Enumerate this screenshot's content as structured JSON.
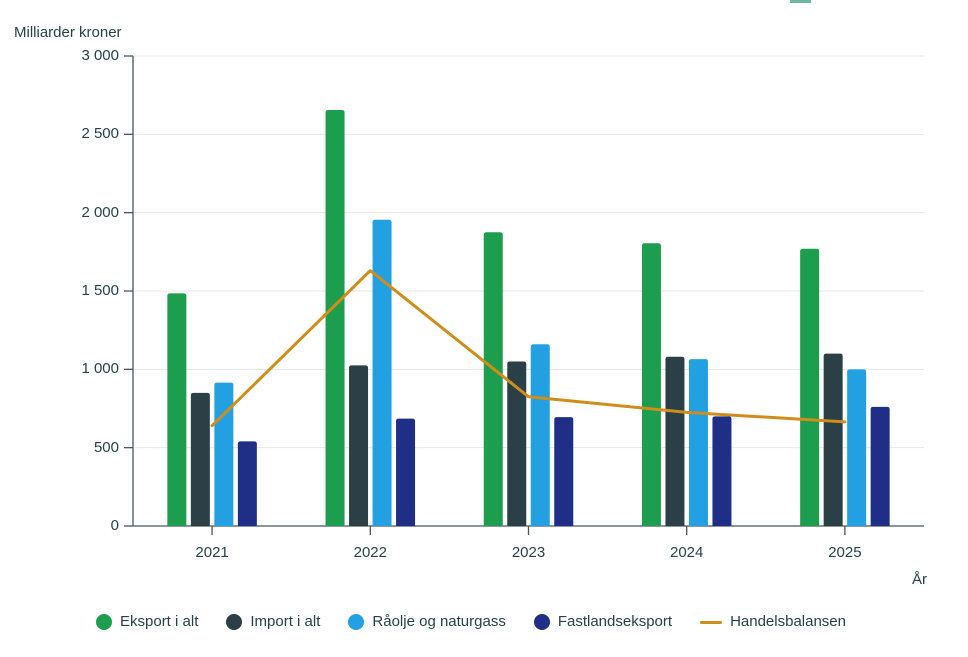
{
  "page": {
    "top_edge_artifact_color": "#6ab8a2"
  },
  "colors": {
    "background": "#ffffff",
    "grid": "#e7e7e7",
    "axis": "#44575f",
    "text": "#274247",
    "eksport_green": "#1d9e4e",
    "import_dark": "#2a4046",
    "raolje_blue": "#23a0e1",
    "fastland_navy": "#1f2e87",
    "handelsbalansen_orange": "#d08d1b"
  },
  "chart_data": {
    "type": "bar",
    "title": "",
    "ylabel": "Milliarder kroner",
    "xlabel": "År",
    "ylim": [
      0,
      3000
    ],
    "ytick_step": 500,
    "ytick_labels": [
      "0",
      "500",
      "1 000",
      "1 500",
      "2 000",
      "2 500",
      "3 000"
    ],
    "grid": true,
    "legend_position": "bottom",
    "categories": [
      "2021",
      "2022",
      "2023",
      "2024",
      "2025"
    ],
    "series": [
      {
        "name": "Eksport i alt",
        "type": "bar",
        "color": "#1d9e4e",
        "values": [
          1485,
          2655,
          1875,
          1805,
          1770
        ]
      },
      {
        "name": "Import i alt",
        "type": "bar",
        "color": "#2a4046",
        "values": [
          850,
          1025,
          1050,
          1080,
          1100
        ]
      },
      {
        "name": "Råolje og naturgass",
        "type": "bar",
        "color": "#23a0e1",
        "values": [
          915,
          1955,
          1160,
          1065,
          1000
        ]
      },
      {
        "name": "Fastlandseksport",
        "type": "bar",
        "color": "#1f2e87",
        "values": [
          540,
          685,
          695,
          700,
          760
        ]
      },
      {
        "name": "Handelsbalansen",
        "type": "line",
        "color": "#d08d1b",
        "values": [
          640,
          1630,
          825,
          725,
          665
        ]
      }
    ]
  }
}
